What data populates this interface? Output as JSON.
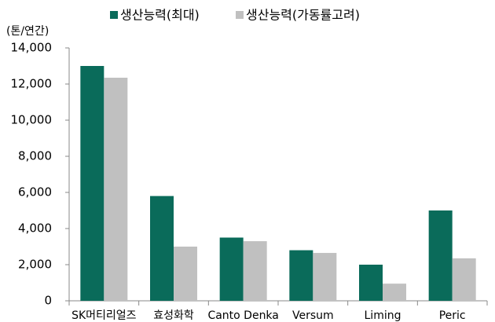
{
  "chart_data": {
    "type": "bar",
    "y_axis_label": "(톤/연간)",
    "categories": [
      "SK머티리얼즈",
      "효성화학",
      "Canto Denka",
      "Versum",
      "Liming",
      "Peric"
    ],
    "series": [
      {
        "name": "생산능력(최대)",
        "color": "#0a6b5a",
        "values": [
          13000,
          5800,
          3500,
          2800,
          2000,
          5000
        ]
      },
      {
        "name": "생산능력(가동률고려)",
        "color": "#c0c0c0",
        "values": [
          12350,
          3000,
          3300,
          2650,
          950,
          2350
        ]
      }
    ],
    "ylim": [
      0,
      14000
    ],
    "yticks": [
      0,
      {
        "value": 2000,
        "label": "2,000"
      },
      {
        "value": 4000,
        "label": "4,000"
      },
      {
        "value": 6000,
        "label": "6,000"
      },
      {
        "value": 8000,
        "label": "8,000"
      },
      {
        "value": 10000,
        "label": "10,000"
      },
      {
        "value": 12000,
        "label": "12,000"
      },
      {
        "value": 14000,
        "label": "14,000"
      }
    ],
    "grid": false
  }
}
